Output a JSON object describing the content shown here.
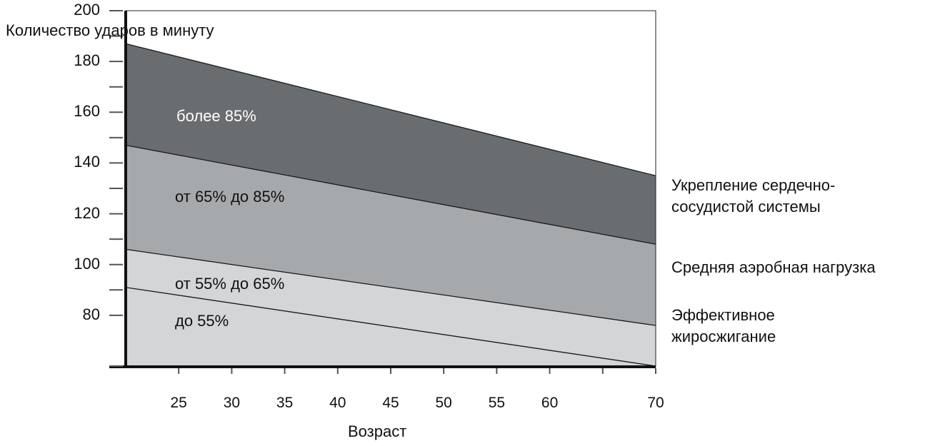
{
  "chart_data": {
    "type": "area",
    "ylabel": "Количество ударов в минуту",
    "xlabel": "Возраст",
    "xlim": [
      20,
      70
    ],
    "ylim": [
      60,
      200
    ],
    "x_ticks": [
      25,
      30,
      35,
      40,
      45,
      50,
      55,
      60,
      70
    ],
    "y_ticks": [
      200,
      180,
      160,
      140,
      120,
      100,
      80
    ],
    "boundaries": [
      {
        "name": "85%",
        "x": [
          20,
          70
        ],
        "y": [
          187,
          135
        ]
      },
      {
        "name": "65%",
        "x": [
          20,
          70
        ],
        "y": [
          147,
          108
        ]
      },
      {
        "name": "55%",
        "x": [
          20,
          70
        ],
        "y": [
          106,
          76
        ]
      },
      {
        "name": "lower",
        "x": [
          20,
          70
        ],
        "y": [
          91,
          60
        ]
      }
    ],
    "zones": [
      {
        "label": "более 85%",
        "color": "#6a6d70"
      },
      {
        "label": "от 65% до 85%",
        "color": "#a6a9ac"
      },
      {
        "label": "от 55% до 65%",
        "color": "#d4d5d7"
      },
      {
        "label": "до 55%",
        "color": "#d4d5d7"
      }
    ],
    "side_labels": [
      "Укрепление сердечно-сосудистой системы",
      "Средняя аэробная нагрузка",
      "Эффективное жиросжигание"
    ]
  }
}
